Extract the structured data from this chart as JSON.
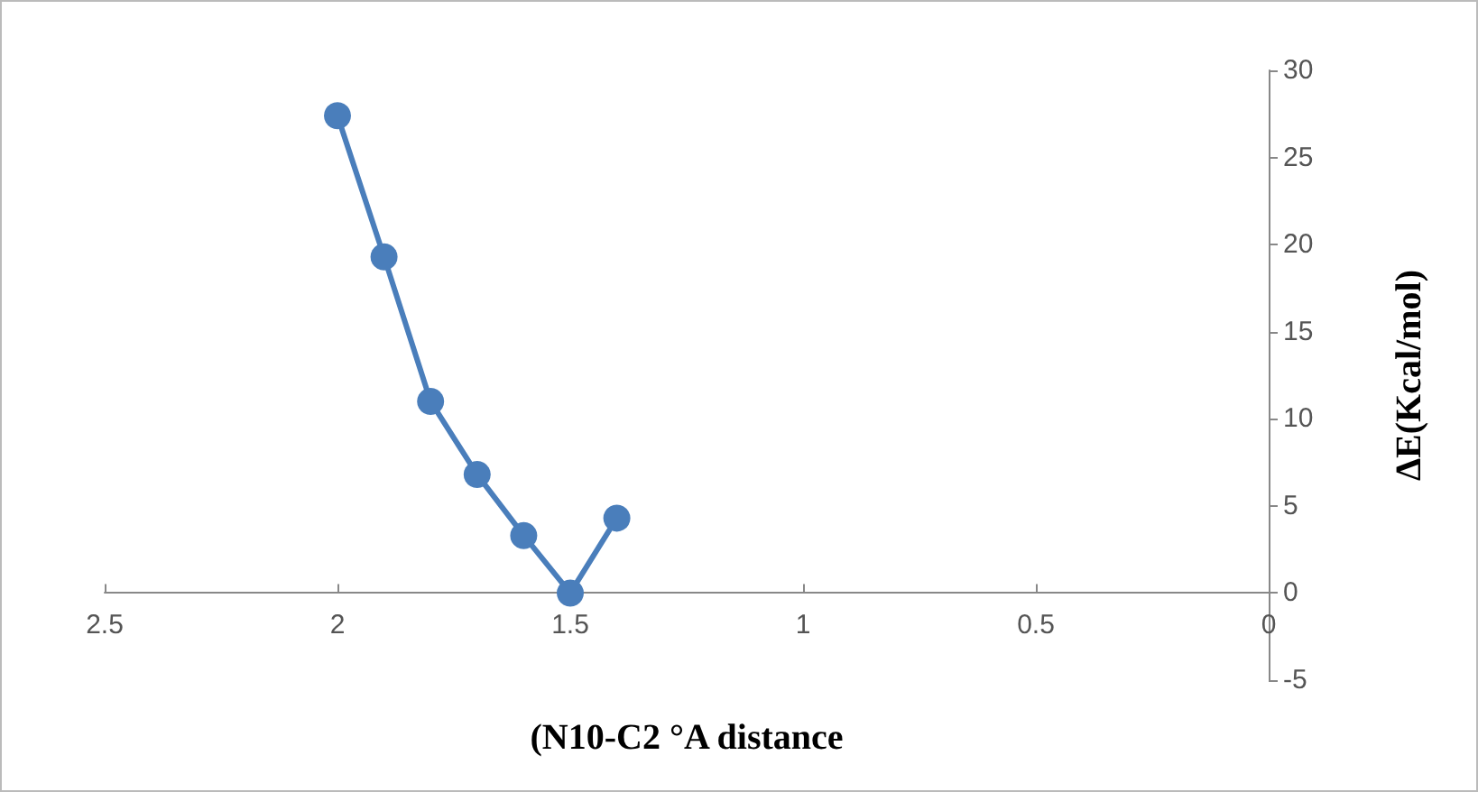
{
  "chart_data": {
    "type": "line",
    "xlabel": "(N10-C2 °A distance",
    "ylabel": "ΔE(Kcal/mol)",
    "x": [
      2,
      1.9,
      1.8,
      1.7,
      1.6,
      1.5,
      1.4
    ],
    "series": [
      {
        "color": "#4a7ebb",
        "values": [
          27.4,
          19.3,
          11.0,
          6.8,
          3.3,
          0,
          4.3
        ]
      }
    ],
    "xlim": [
      2.5,
      0
    ],
    "xticks": [
      2.5,
      2,
      1.5,
      1,
      0.5,
      0
    ],
    "ylim": [
      -5,
      30
    ],
    "yticks": [
      -5,
      0,
      5,
      10,
      15,
      20,
      25,
      30
    ],
    "marker": "circle",
    "line_style": "solid"
  }
}
